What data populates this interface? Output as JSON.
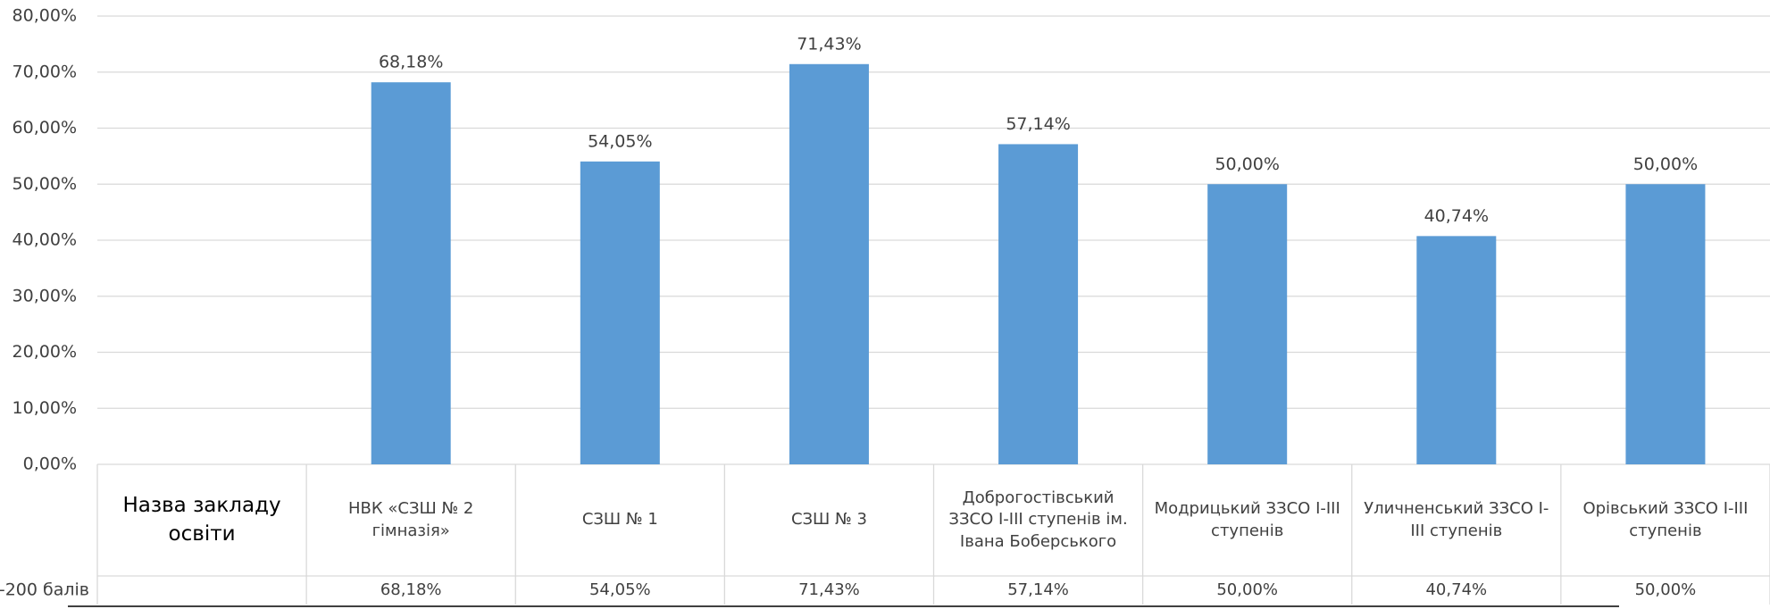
{
  "chart_data": {
    "type": "bar",
    "categories": [
      "Назва закладу освіти",
      "НВК «СЗШ № 2 гімназія»",
      "СЗШ № 1",
      "СЗШ № 3",
      "Доброгостівський ЗЗСО І-ІІІ ступенів ім. Івана Боберського",
      "Модрицький ЗЗСО І-ІІІ ступенів",
      "Уличненський ЗЗСО І-ІІІ ступенів",
      "Орівський ЗЗСО І-ІІІ ступенів"
    ],
    "series": [
      {
        "name": "-200 балів",
        "color": "#5b9bd5",
        "values": [
          null,
          68.18,
          54.05,
          71.43,
          57.14,
          50,
          40.74,
          50
        ],
        "value_labels": [
          null,
          "68,18%",
          "54,05%",
          "71,43%",
          "57,14%",
          "50,00%",
          "40,74%",
          "50,00%"
        ]
      }
    ],
    "ylim": [
      0,
      80
    ],
    "yticks": [
      {
        "value": 0,
        "label": "0,00%"
      },
      {
        "value": 10,
        "label": "10,00%"
      },
      {
        "value": 20,
        "label": "20,00%"
      },
      {
        "value": 30,
        "label": "30,00%"
      },
      {
        "value": 40,
        "label": "40,00%"
      },
      {
        "value": 50,
        "label": "50,00%"
      },
      {
        "value": 60,
        "label": "60,00%"
      },
      {
        "value": 70,
        "label": "70,00%"
      },
      {
        "value": 80,
        "label": "80,00%"
      }
    ],
    "grid": true
  }
}
